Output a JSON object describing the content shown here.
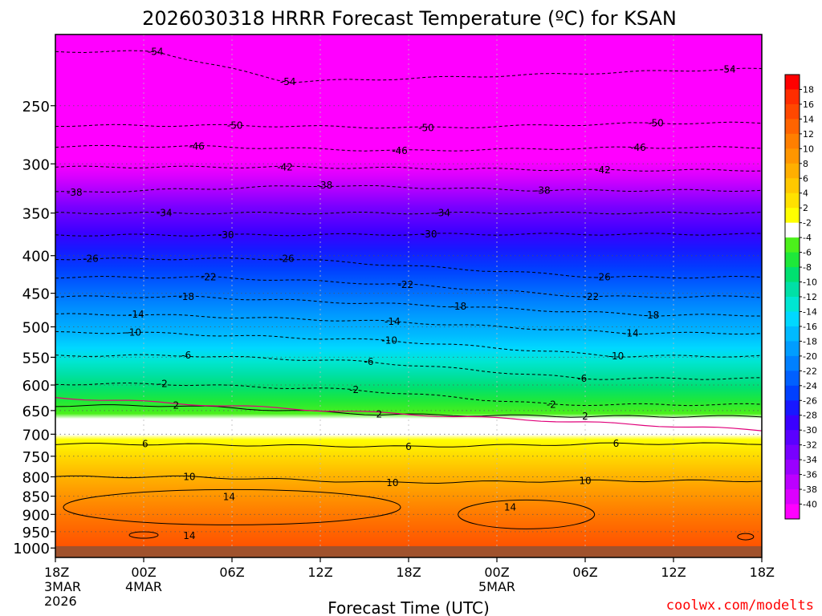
{
  "chart_data": {
    "type": "heatmap",
    "title": "2026030318 HRRR Forecast Temperature (ºC) for KSAN",
    "xlabel": "Forecast Time (UTC)",
    "ylabel": "",
    "credit": "coolwx.com/modelts",
    "x_ticks": [
      {
        "h": 0,
        "lines": [
          "18Z",
          "3MAR",
          "2026"
        ]
      },
      {
        "h": 6,
        "lines": [
          "00Z",
          "4MAR"
        ]
      },
      {
        "h": 12,
        "lines": [
          "06Z"
        ]
      },
      {
        "h": 18,
        "lines": [
          "12Z"
        ]
      },
      {
        "h": 24,
        "lines": [
          "18Z"
        ]
      },
      {
        "h": 30,
        "lines": [
          "00Z",
          "5MAR"
        ]
      },
      {
        "h": 36,
        "lines": [
          "06Z"
        ]
      },
      {
        "h": 42,
        "lines": [
          "12Z"
        ]
      },
      {
        "h": 48,
        "lines": [
          "18Z"
        ]
      }
    ],
    "xlim": [
      0,
      48
    ],
    "y_ticks": [
      250,
      300,
      350,
      400,
      450,
      500,
      550,
      600,
      650,
      700,
      750,
      800,
      850,
      900,
      950,
      1000
    ],
    "ylim": [
      200,
      1030
    ],
    "y_scale": "log",
    "colorbar_labels": [
      18,
      16,
      14,
      12,
      10,
      8,
      6,
      4,
      2,
      -2,
      -4,
      -6,
      -8,
      -10,
      -12,
      -14,
      -16,
      -18,
      -20,
      -22,
      -24,
      -26,
      -28,
      -30,
      -32,
      -34,
      -36,
      -38,
      -40
    ],
    "colorbar_colors": [
      "#ff0000",
      "#ff2d00",
      "#ff4800",
      "#ff6400",
      "#ff7f00",
      "#ff9600",
      "#ffaf00",
      "#ffc800",
      "#ffe100",
      "#ffff00",
      "#ffffff",
      "#4cf01b",
      "#1ee83a",
      "#00e070",
      "#00e0a6",
      "#00e6d2",
      "#00d8ff",
      "#00baff",
      "#009dff",
      "#0080ff",
      "#0060ff",
      "#0040ff",
      "#1818ff",
      "#3a00ff",
      "#5a00ff",
      "#7800ff",
      "#9a00ff",
      "#bc00ff",
      "#dc00ff",
      "#ff00ff"
    ],
    "terrain_color": "#a0522d",
    "contours": [
      {
        "value": -54,
        "labels": [
          {
            "h": 6.8,
            "p": 211
          },
          {
            "h": 15.8,
            "p": 232
          },
          {
            "h": 45.7,
            "p": 223
          }
        ]
      },
      {
        "value": -50,
        "labels": [
          {
            "h": 12.2,
            "p": 266
          },
          {
            "h": 25.2,
            "p": 268
          },
          {
            "h": 40.8,
            "p": 264
          }
        ]
      },
      {
        "value": -46,
        "labels": [
          {
            "h": 9.6,
            "p": 284
          },
          {
            "h": 23.4,
            "p": 288
          },
          {
            "h": 39.6,
            "p": 285
          }
        ]
      },
      {
        "value": -42,
        "labels": [
          {
            "h": 15.6,
            "p": 303
          },
          {
            "h": 37.2,
            "p": 306
          }
        ]
      },
      {
        "value": -38,
        "labels": [
          {
            "h": 1.3,
            "p": 328
          },
          {
            "h": 18.3,
            "p": 321
          },
          {
            "h": 33.1,
            "p": 326
          }
        ]
      },
      {
        "value": -34,
        "labels": [
          {
            "h": 7.4,
            "p": 350
          },
          {
            "h": 26.3,
            "p": 350
          }
        ]
      },
      {
        "value": -30,
        "labels": [
          {
            "h": 11.6,
            "p": 375
          },
          {
            "h": 25.4,
            "p": 374
          }
        ]
      },
      {
        "value": -26,
        "labels": [
          {
            "h": 2.4,
            "p": 404
          },
          {
            "h": 15.7,
            "p": 404
          },
          {
            "h": 37.2,
            "p": 428
          }
        ]
      },
      {
        "value": -22,
        "labels": [
          {
            "h": 10.4,
            "p": 428
          },
          {
            "h": 23.8,
            "p": 438
          },
          {
            "h": 36.4,
            "p": 455
          }
        ]
      },
      {
        "value": -18,
        "labels": [
          {
            "h": 8.9,
            "p": 455
          },
          {
            "h": 27.4,
            "p": 469
          },
          {
            "h": 40.5,
            "p": 482
          }
        ]
      },
      {
        "value": -14,
        "labels": [
          {
            "h": 5.5,
            "p": 481
          },
          {
            "h": 22.9,
            "p": 492
          },
          {
            "h": 39.1,
            "p": 510
          }
        ]
      },
      {
        "value": -10,
        "labels": [
          {
            "h": 5.3,
            "p": 509
          },
          {
            "h": 22.7,
            "p": 522
          },
          {
            "h": 38.1,
            "p": 548
          }
        ]
      },
      {
        "value": -6,
        "labels": [
          {
            "h": 8.9,
            "p": 547
          },
          {
            "h": 21.3,
            "p": 558
          },
          {
            "h": 35.8,
            "p": 588
          }
        ]
      },
      {
        "value": -2,
        "labels": [
          {
            "h": 7.3,
            "p": 598
          },
          {
            "h": 20.3,
            "p": 609
          },
          {
            "h": 33.7,
            "p": 638
          }
        ]
      },
      {
        "value": 2,
        "labels": [
          {
            "h": 8.2,
            "p": 640
          },
          {
            "h": 22.0,
            "p": 658
          },
          {
            "h": 36.0,
            "p": 662
          }
        ]
      },
      {
        "value": 6,
        "labels": [
          {
            "h": 6.1,
            "p": 722
          },
          {
            "h": 24.0,
            "p": 728
          },
          {
            "h": 38.1,
            "p": 721
          }
        ]
      },
      {
        "value": 10,
        "labels": [
          {
            "h": 9.1,
            "p": 800
          },
          {
            "h": 22.9,
            "p": 815
          },
          {
            "h": 36.0,
            "p": 810
          }
        ]
      },
      {
        "value": 14,
        "labels": [
          {
            "h": 11.8,
            "p": 852
          },
          {
            "h": 30.9,
            "p": 880
          },
          {
            "h": 9.1,
            "p": 963
          }
        ]
      }
    ]
  }
}
